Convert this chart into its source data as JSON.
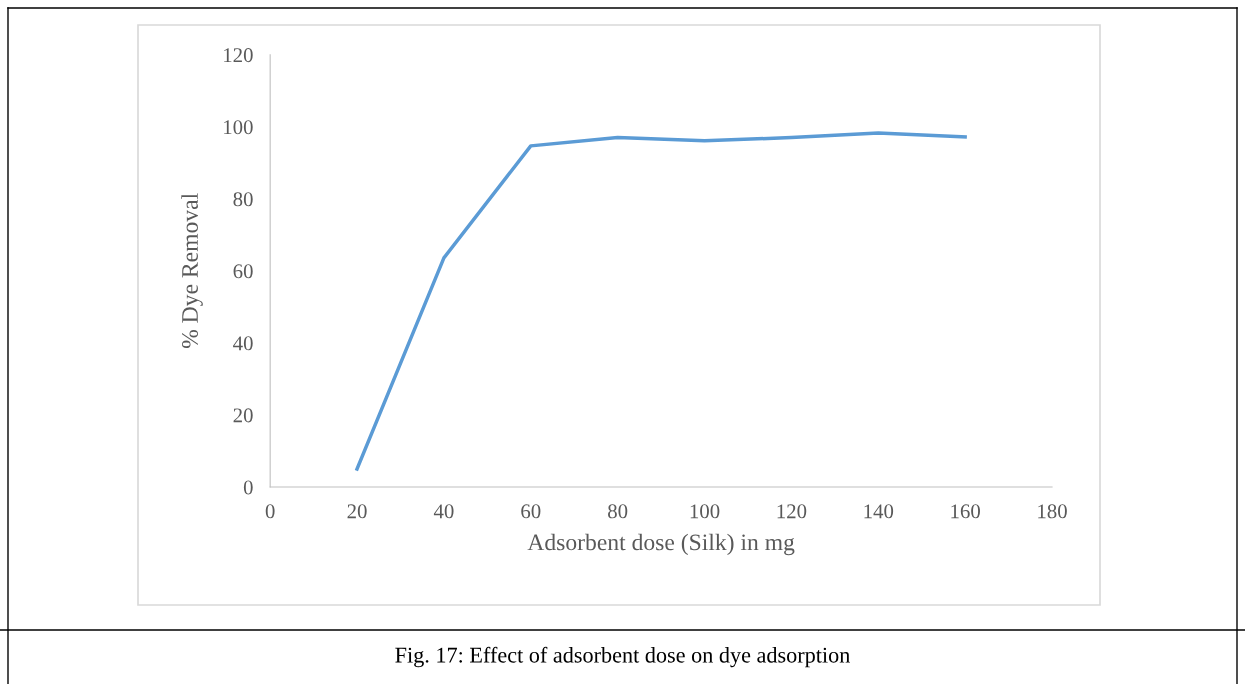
{
  "chart_data": {
    "type": "line",
    "xlabel": "Adsorbent dose (Silk) in mg",
    "ylabel": "% Dye Removal",
    "x": [
      20,
      40,
      60,
      80,
      100,
      120,
      140,
      160
    ],
    "series": [
      {
        "color": "#5b9bd5",
        "values": [
          5,
          63.6,
          94.7,
          97,
          96.1,
          97,
          98.3,
          97.2
        ]
      }
    ],
    "xlim": [
      0,
      180
    ],
    "xticks": [
      0,
      20,
      40,
      60,
      80,
      100,
      120,
      140,
      160,
      180
    ],
    "ylim": [
      0,
      120
    ],
    "yticks": [
      0,
      20,
      40,
      60,
      80,
      100,
      120
    ],
    "grid": false,
    "legend": false,
    "marker": "none",
    "line_style": "solid",
    "annotations": [
      "Fig. 17: Effect of adsorbent dose on dye adsorption"
    ]
  }
}
